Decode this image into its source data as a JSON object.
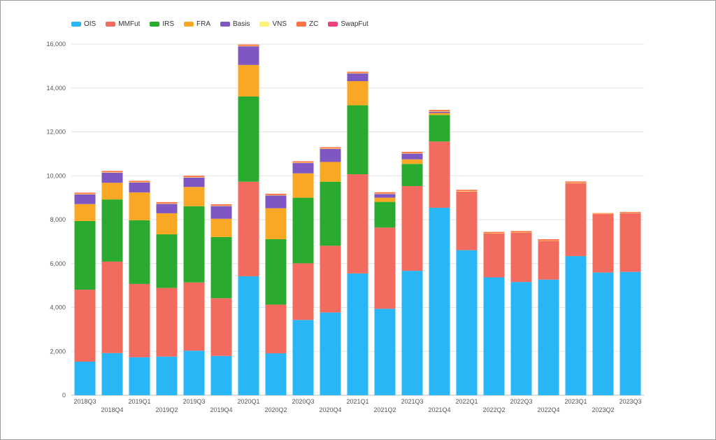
{
  "chart_data": {
    "type": "bar",
    "stacked": true,
    "title": "",
    "xlabel": "",
    "ylabel": "",
    "ylim": [
      0,
      16000
    ],
    "yticks": [
      "0",
      "2,000",
      "4,000",
      "6,000",
      "8,000",
      "10,000",
      "12,000",
      "14,000",
      "16,000"
    ],
    "grid": true,
    "legend_position": "top-left",
    "categories": [
      "2018Q3",
      "2018Q4",
      "2019Q1",
      "2019Q2",
      "2019Q3",
      "2019Q4",
      "2020Q1",
      "2020Q2",
      "2020Q3",
      "2020Q4",
      "2021Q1",
      "2021Q2",
      "2021Q3",
      "2021Q4",
      "2022Q1",
      "2022Q2",
      "2022Q3",
      "2022Q4",
      "2023Q1",
      "2023Q2",
      "2023Q3"
    ],
    "series": [
      {
        "name": "OIS",
        "color": "#29b6f6",
        "values": [
          1530,
          1920,
          1730,
          1760,
          2030,
          1790,
          5420,
          1910,
          3430,
          3770,
          5550,
          3940,
          5670,
          8540,
          6610,
          5370,
          5160,
          5270,
          6340,
          5590,
          5620
        ]
      },
      {
        "name": "MMFut",
        "color": "#f26b5e",
        "values": [
          3280,
          4170,
          3340,
          3130,
          3110,
          2630,
          4310,
          2220,
          2580,
          3040,
          4520,
          3700,
          3860,
          3020,
          2670,
          2000,
          2250,
          1770,
          3320,
          2670,
          2680
        ]
      },
      {
        "name": "IRS",
        "color": "#2aab2f",
        "values": [
          3130,
          2830,
          2900,
          2440,
          3470,
          2790,
          3880,
          2980,
          2990,
          2920,
          3140,
          1170,
          1010,
          1210,
          0,
          0,
          0,
          0,
          0,
          0,
          0
        ]
      },
      {
        "name": "FRA",
        "color": "#f9a825",
        "values": [
          770,
          760,
          1270,
          960,
          880,
          830,
          1440,
          1410,
          1110,
          900,
          1100,
          190,
          210,
          90,
          0,
          0,
          0,
          0,
          0,
          0,
          0
        ]
      },
      {
        "name": "Basis",
        "color": "#7e57c2",
        "values": [
          440,
          460,
          450,
          430,
          430,
          580,
          850,
          580,
          470,
          590,
          350,
          170,
          260,
          60,
          0,
          0,
          0,
          0,
          0,
          0,
          0
        ]
      },
      {
        "name": "VNS",
        "color": "#fff176",
        "values": [
          20,
          20,
          20,
          20,
          20,
          20,
          20,
          20,
          20,
          20,
          20,
          20,
          20,
          20,
          20,
          10,
          10,
          10,
          20,
          10,
          10
        ]
      },
      {
        "name": "ZC",
        "color": "#ff7043",
        "values": [
          60,
          60,
          60,
          60,
          60,
          60,
          60,
          60,
          60,
          60,
          60,
          60,
          60,
          60,
          60,
          60,
          60,
          60,
          60,
          30,
          40
        ]
      },
      {
        "name": "SwapFut",
        "color": "#ec407a",
        "values": [
          0,
          0,
          0,
          0,
          0,
          0,
          0,
          0,
          0,
          0,
          0,
          0,
          0,
          0,
          0,
          0,
          0,
          0,
          0,
          0,
          0
        ]
      }
    ]
  }
}
